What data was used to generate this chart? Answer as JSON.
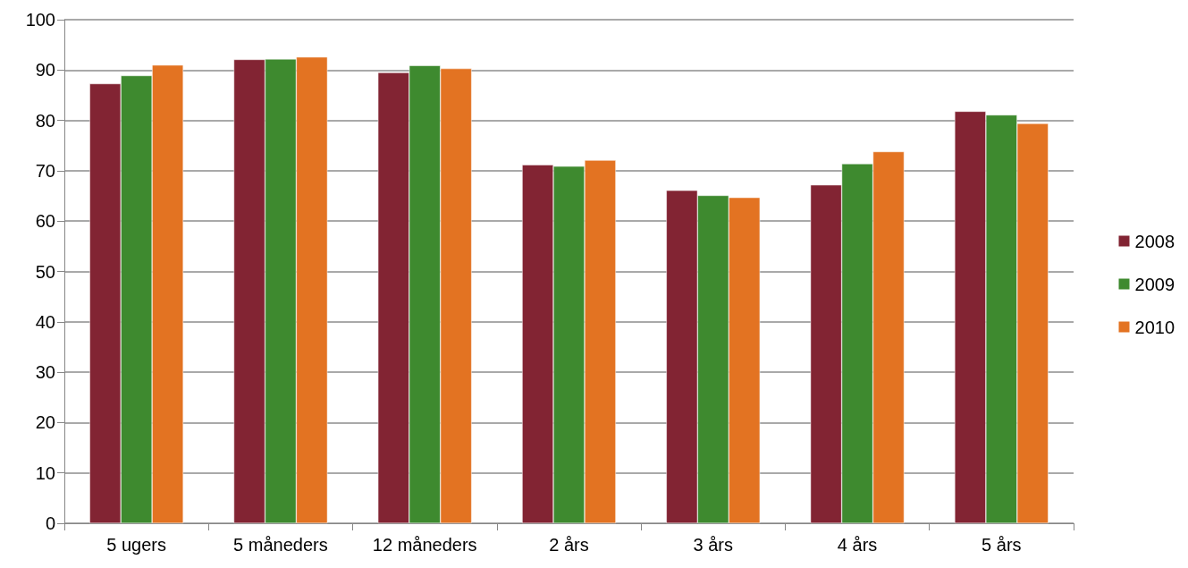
{
  "chart_data": {
    "type": "bar",
    "categories": [
      "5 ugers",
      "5 måneders",
      "12 måneders",
      "2 års",
      "3 års",
      "4 års",
      "5 års"
    ],
    "series": [
      {
        "name": "2008",
        "color": "#822433",
        "values": [
          87.3,
          92.1,
          89.5,
          71.2,
          66.1,
          67.2,
          81.8
        ]
      },
      {
        "name": "2009",
        "color": "#3e8a2f",
        "values": [
          88.9,
          92.2,
          90.9,
          70.9,
          65.1,
          71.4,
          81.1
        ]
      },
      {
        "name": "2010",
        "color": "#e37322",
        "values": [
          91.0,
          92.6,
          90.3,
          72.1,
          64.7,
          73.8,
          79.4
        ]
      }
    ],
    "ylim": [
      0,
      100
    ],
    "yticks": [
      0,
      10,
      20,
      30,
      40,
      50,
      60,
      70,
      80,
      90,
      100
    ],
    "grid": "y",
    "legend": "right"
  }
}
